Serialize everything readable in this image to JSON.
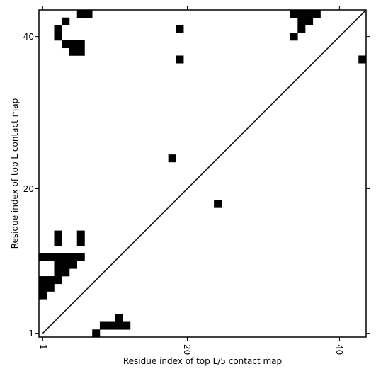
{
  "chart_data": {
    "type": "heatmap",
    "title": "",
    "xlabel": "Residue index of top L/5 contact map",
    "ylabel": "Residue index of top L contact map",
    "xlim": [
      0.5,
      43.5
    ],
    "ylim": [
      0.5,
      43.5
    ],
    "grid": false,
    "xticks": [
      1,
      20,
      40
    ],
    "yticks": [
      1,
      20,
      40
    ],
    "tick_labels_x": [
      "1",
      "20",
      "40"
    ],
    "tick_labels_y": [
      "1",
      "20",
      "40"
    ],
    "diagonal": {
      "from": [
        1,
        1
      ],
      "to": [
        43,
        43
      ]
    },
    "cell_color": "#000000",
    "contacts": [
      [
        6,
        43
      ],
      [
        7,
        43
      ],
      [
        34,
        43
      ],
      [
        35,
        43
      ],
      [
        36,
        43
      ],
      [
        37,
        43
      ],
      [
        4,
        42
      ],
      [
        35,
        42
      ],
      [
        36,
        42
      ],
      [
        3,
        41
      ],
      [
        19,
        41
      ],
      [
        35,
        41
      ],
      [
        3,
        40
      ],
      [
        34,
        40
      ],
      [
        4,
        39
      ],
      [
        5,
        39
      ],
      [
        6,
        39
      ],
      [
        5,
        38
      ],
      [
        6,
        38
      ],
      [
        19,
        37
      ],
      [
        43,
        37
      ],
      [
        18,
        24
      ],
      [
        24,
        18
      ],
      [
        3,
        14
      ],
      [
        6,
        14
      ],
      [
        3,
        13
      ],
      [
        6,
        13
      ],
      [
        1,
        11
      ],
      [
        2,
        11
      ],
      [
        3,
        11
      ],
      [
        4,
        11
      ],
      [
        5,
        11
      ],
      [
        6,
        11
      ],
      [
        3,
        10
      ],
      [
        4,
        10
      ],
      [
        5,
        10
      ],
      [
        3,
        9
      ],
      [
        4,
        9
      ],
      [
        1,
        8
      ],
      [
        2,
        8
      ],
      [
        3,
        8
      ],
      [
        1,
        7
      ],
      [
        2,
        7
      ],
      [
        1,
        6
      ],
      [
        11,
        3
      ],
      [
        9,
        2
      ],
      [
        10,
        2
      ],
      [
        11,
        2
      ],
      [
        12,
        2
      ],
      [
        8,
        1
      ]
    ]
  }
}
